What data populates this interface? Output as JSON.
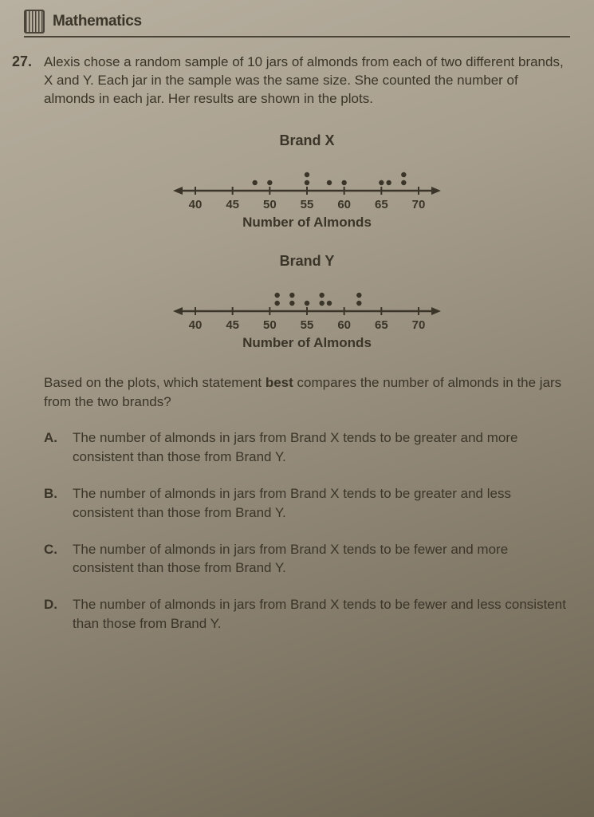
{
  "header": {
    "subject": "Mathematics"
  },
  "question": {
    "number": "27.",
    "text": "Alexis chose a random sample of 10 jars of almonds from each of two different brands, X and Y. Each jar in the sample was the same size. She counted the number of almonds in each jar. Her results are shown in the plots.",
    "followup": "Based on the plots, which statement best compares the number of almonds in the jars from the two brands?"
  },
  "plots": {
    "axis_label": "Number of Almonds",
    "ticks": [
      40,
      45,
      50,
      55,
      60,
      65,
      70
    ],
    "xlim": [
      37,
      73
    ],
    "tick_spacing_px": 40,
    "dot_radius": 3.2,
    "dot_row_gap": 10,
    "axis_color": "#3a3528",
    "brandX": {
      "title": "Brand X",
      "points": [
        {
          "x": 48,
          "count": 1
        },
        {
          "x": 50,
          "count": 1
        },
        {
          "x": 55,
          "count": 2
        },
        {
          "x": 58,
          "count": 1
        },
        {
          "x": 60,
          "count": 1
        },
        {
          "x": 65,
          "count": 1
        },
        {
          "x": 66,
          "count": 1
        },
        {
          "x": 68,
          "count": 2
        }
      ]
    },
    "brandY": {
      "title": "Brand Y",
      "points": [
        {
          "x": 51,
          "count": 2
        },
        {
          "x": 53,
          "count": 2
        },
        {
          "x": 55,
          "count": 1
        },
        {
          "x": 57,
          "count": 2
        },
        {
          "x": 58,
          "count": 1
        },
        {
          "x": 62,
          "count": 2
        }
      ]
    }
  },
  "choices": {
    "A": "The number of almonds in jars from Brand X tends to be greater and more consistent than those from Brand Y.",
    "B": "The number of almonds in jars from Brand X tends to be greater and less consistent than those from Brand Y.",
    "C": "The number of almonds in jars from Brand X tends to be fewer and more consistent than those from Brand Y.",
    "D": "The number of almonds in jars from Brand X tends to be fewer and less consistent than those from Brand Y."
  }
}
